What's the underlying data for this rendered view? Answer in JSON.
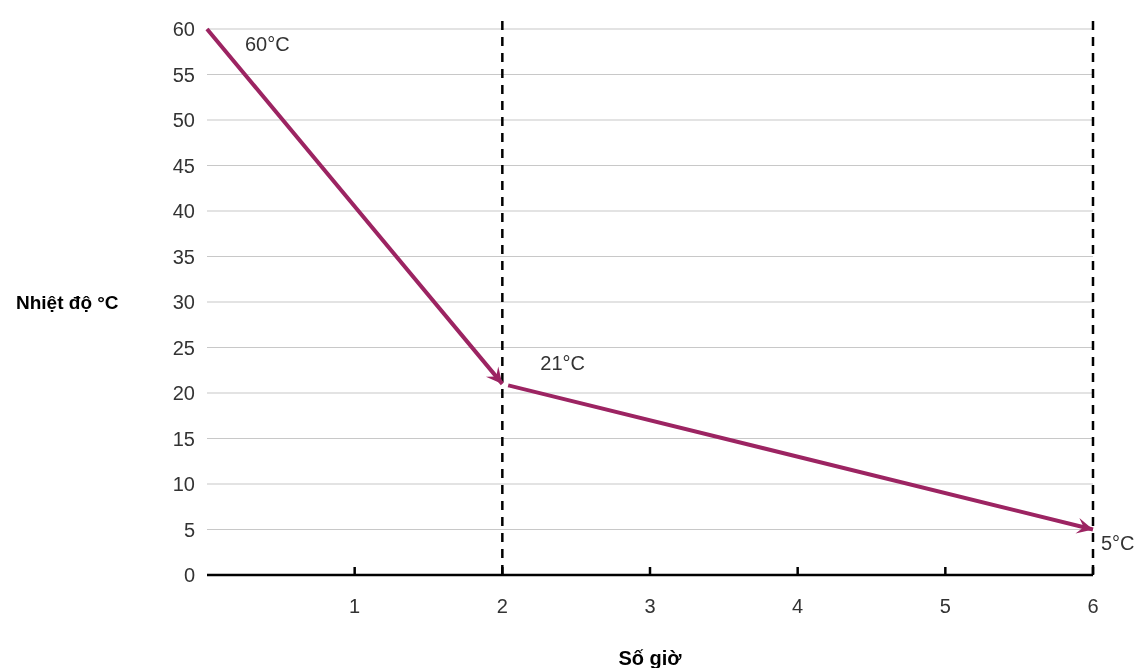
{
  "chart_data": {
    "type": "line",
    "xlabel": "Số giờ",
    "ylabel": "Nhiệt độ °C",
    "x": [
      0,
      2,
      6
    ],
    "series": [
      {
        "color": "#9c2462",
        "values": [
          60,
          21,
          5
        ]
      }
    ],
    "xlim": [
      0,
      6
    ],
    "xticks": [
      1,
      2,
      3,
      4,
      5,
      6
    ],
    "ylim": [
      0,
      60
    ],
    "yticks": [
      0,
      5,
      10,
      15,
      20,
      25,
      30,
      35,
      40,
      45,
      50,
      55,
      60
    ],
    "grid": "y",
    "marker": "none",
    "line_style": "solid",
    "ref_lines": [
      {
        "axis": "x",
        "value": 2,
        "color": "#000000",
        "line_style": "dashed"
      },
      {
        "axis": "x",
        "value": 6,
        "color": "#000000",
        "line_style": "dashed"
      }
    ],
    "annotations": [
      {
        "text": "60°C",
        "x": 0,
        "y": 60
      },
      {
        "text": "21°C",
        "x": 2,
        "y": 21
      },
      {
        "text": "5°C",
        "x": 6,
        "y": 5
      }
    ]
  }
}
